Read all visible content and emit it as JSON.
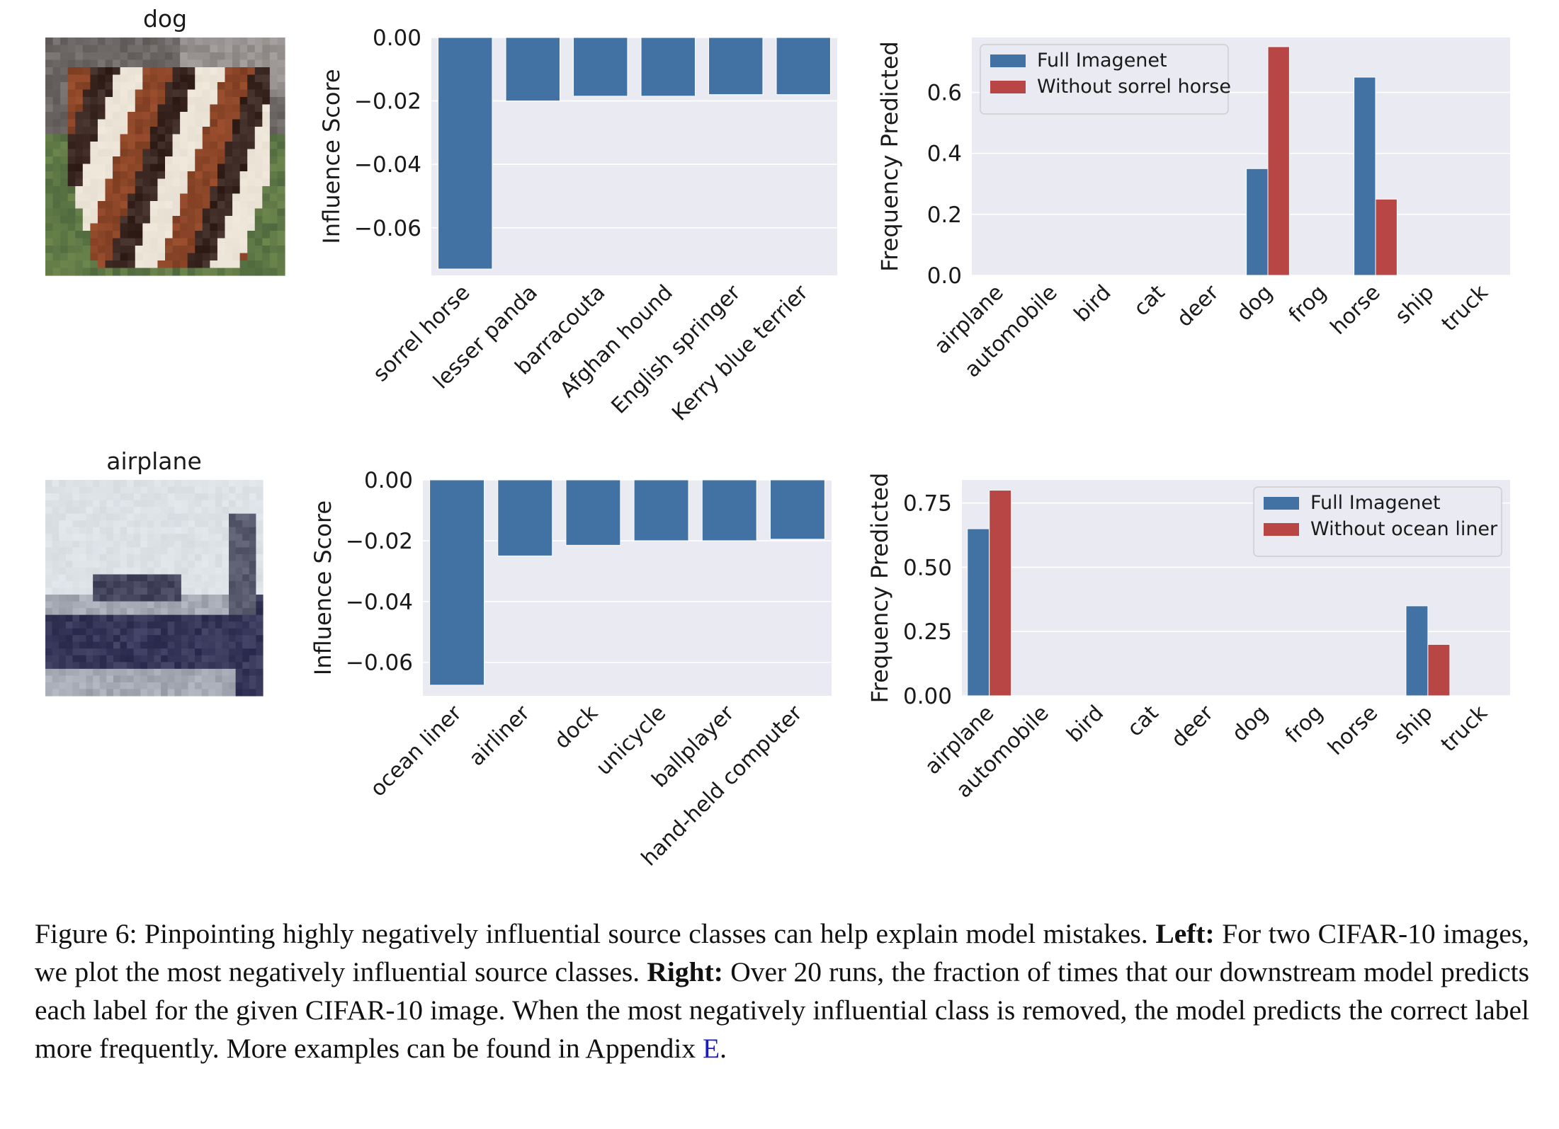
{
  "figure": {
    "rows": [
      {
        "image_label": "dog",
        "influence_chart": {
          "type": "bar",
          "ylabel": "Influence Score",
          "ylim": [
            -0.075,
            0.0
          ],
          "yticks": [
            0.0,
            -0.02,
            -0.04,
            -0.06
          ],
          "ytick_labels": [
            "0.00",
            "−0.02",
            "−0.04",
            "−0.06"
          ],
          "categories": [
            "sorrel horse",
            "lesser panda",
            "barracouta",
            "Afghan hound",
            "English springer",
            "Kerry blue terrier"
          ],
          "values": [
            -0.073,
            -0.02,
            -0.0185,
            -0.0185,
            -0.018,
            -0.018
          ],
          "color": "#4272a4",
          "grid": true
        },
        "frequency_chart": {
          "type": "bar",
          "ylabel": "Frequency Predicted",
          "ylim": [
            0.0,
            0.78
          ],
          "yticks": [
            0.0,
            0.2,
            0.4,
            0.6
          ],
          "ytick_labels": [
            "0.0",
            "0.2",
            "0.4",
            "0.6"
          ],
          "categories": [
            "airplane",
            "automobile",
            "bird",
            "cat",
            "deer",
            "dog",
            "frog",
            "horse",
            "ship",
            "truck"
          ],
          "series": [
            {
              "name": "Full Imagenet",
              "color": "#4272a4",
              "values": [
                0,
                0,
                0,
                0,
                0,
                0.35,
                0,
                0.65,
                0,
                0
              ]
            },
            {
              "name": "Without sorrel horse",
              "color": "#b84645",
              "values": [
                0,
                0,
                0,
                0,
                0,
                0.75,
                0,
                0.25,
                0,
                0
              ]
            }
          ],
          "legend": "top-left",
          "grid": true
        }
      },
      {
        "image_label": "airplane",
        "influence_chart": {
          "type": "bar",
          "ylabel": "Influence Score",
          "ylim": [
            -0.071,
            0.0
          ],
          "yticks": [
            0.0,
            -0.02,
            -0.04,
            -0.06
          ],
          "ytick_labels": [
            "0.00",
            "−0.02",
            "−0.04",
            "−0.06"
          ],
          "categories": [
            "ocean liner",
            "airliner",
            "dock",
            "unicycle",
            "ballplayer",
            "hand-held computer"
          ],
          "values": [
            -0.0675,
            -0.025,
            -0.0215,
            -0.02,
            -0.02,
            -0.0195
          ],
          "color": "#4272a4",
          "grid": true
        },
        "frequency_chart": {
          "type": "bar",
          "ylabel": "Frequency Predicted",
          "ylim": [
            0.0,
            0.84
          ],
          "yticks": [
            0.0,
            0.25,
            0.5,
            0.75
          ],
          "ytick_labels": [
            "0.00",
            "0.25",
            "0.50",
            "0.75"
          ],
          "categories": [
            "airplane",
            "automobile",
            "bird",
            "cat",
            "deer",
            "dog",
            "frog",
            "horse",
            "ship",
            "truck"
          ],
          "series": [
            {
              "name": "Full Imagenet",
              "color": "#4272a4",
              "values": [
                0.65,
                0,
                0,
                0,
                0,
                0,
                0,
                0,
                0.35,
                0
              ]
            },
            {
              "name": "Without ocean liner",
              "color": "#b84645",
              "values": [
                0.8,
                0,
                0,
                0,
                0,
                0,
                0,
                0,
                0.2,
                0
              ]
            }
          ],
          "legend": "top-right",
          "grid": true
        }
      }
    ]
  },
  "caption": {
    "fig_label": "Figure 6: Pinpointing highly negatively influential source classes can help explain model mistakes.",
    "left_label": "Left:",
    "left_text": "For two CIFAR-10 images, we plot the most negatively influential source classes.",
    "right_label": "Right:",
    "right_text": "Over 20 runs, the fraction of times that our downstream model predicts each label for the given CIFAR-10 image. When the most negatively influential class is removed, the model predicts the correct label more frequently. More examples can be found in Appendix",
    "appendix_ref": "E",
    "end": "."
  },
  "chart_data": [
    {
      "type": "bar",
      "ylabel": "Influence Score",
      "categories": [
        "sorrel horse",
        "lesser panda",
        "barracouta",
        "Afghan hound",
        "English springer",
        "Kerry blue terrier"
      ],
      "values": [
        -0.073,
        -0.02,
        -0.0185,
        -0.0185,
        -0.018,
        -0.018
      ],
      "ylim": [
        -0.075,
        0.0
      ]
    },
    {
      "type": "bar",
      "ylabel": "Frequency Predicted",
      "categories": [
        "airplane",
        "automobile",
        "bird",
        "cat",
        "deer",
        "dog",
        "frog",
        "horse",
        "ship",
        "truck"
      ],
      "series": [
        {
          "name": "Full Imagenet",
          "values": [
            0,
            0,
            0,
            0,
            0,
            0.35,
            0,
            0.65,
            0,
            0
          ]
        },
        {
          "name": "Without sorrel horse",
          "values": [
            0,
            0,
            0,
            0,
            0,
            0.75,
            0,
            0.25,
            0,
            0
          ]
        }
      ],
      "ylim": [
        0.0,
        0.78
      ],
      "legend": "top-left"
    },
    {
      "type": "bar",
      "ylabel": "Influence Score",
      "categories": [
        "ocean liner",
        "airliner",
        "dock",
        "unicycle",
        "ballplayer",
        "hand-held computer"
      ],
      "values": [
        -0.0675,
        -0.025,
        -0.0215,
        -0.02,
        -0.02,
        -0.0195
      ],
      "ylim": [
        -0.071,
        0.0
      ]
    },
    {
      "type": "bar",
      "ylabel": "Frequency Predicted",
      "categories": [
        "airplane",
        "automobile",
        "bird",
        "cat",
        "deer",
        "dog",
        "frog",
        "horse",
        "ship",
        "truck"
      ],
      "series": [
        {
          "name": "Full Imagenet",
          "values": [
            0.65,
            0,
            0,
            0,
            0,
            0,
            0,
            0,
            0.35,
            0
          ]
        },
        {
          "name": "Without ocean liner",
          "values": [
            0.8,
            0,
            0,
            0,
            0,
            0,
            0,
            0,
            0.2,
            0
          ]
        }
      ],
      "ylim": [
        0.0,
        0.84
      ],
      "legend": "top-right"
    }
  ]
}
